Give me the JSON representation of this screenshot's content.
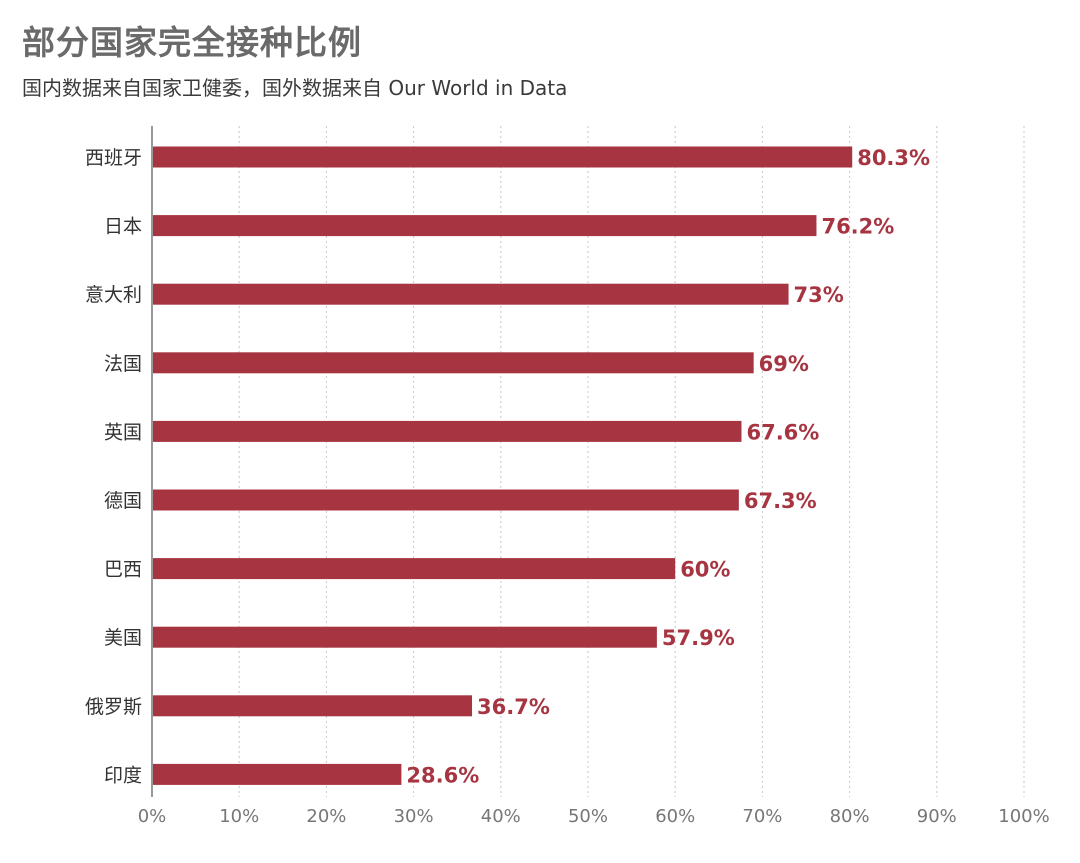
{
  "title": "部分国家完全接种比例",
  "subtitle": "国内数据来自国家卫健委，国外数据来自 Our World in Data",
  "colors": {
    "bar": "#a73541",
    "label": "#a73541",
    "axis": "#555555",
    "grid": "#c8c8c8"
  },
  "chart_data": {
    "type": "bar",
    "orientation": "horizontal",
    "categories": [
      "西班牙",
      "日本",
      "意大利",
      "法国",
      "英国",
      "德国",
      "巴西",
      "美国",
      "俄罗斯",
      "印度"
    ],
    "values": [
      80.3,
      76.2,
      73,
      69,
      67.6,
      67.3,
      60,
      57.9,
      36.7,
      28.6
    ],
    "data_labels": [
      "80.3%",
      "76.2%",
      "73%",
      "69%",
      "67.6%",
      "67.3%",
      "60%",
      "57.9%",
      "36.7%",
      "28.6%"
    ],
    "xlim": [
      0,
      100
    ],
    "x_ticks": [
      "0%",
      "10%",
      "20%",
      "30%",
      "40%",
      "50%",
      "60%",
      "70%",
      "80%",
      "90%",
      "100%"
    ],
    "grid": "vertical dotted",
    "legend": "none"
  }
}
